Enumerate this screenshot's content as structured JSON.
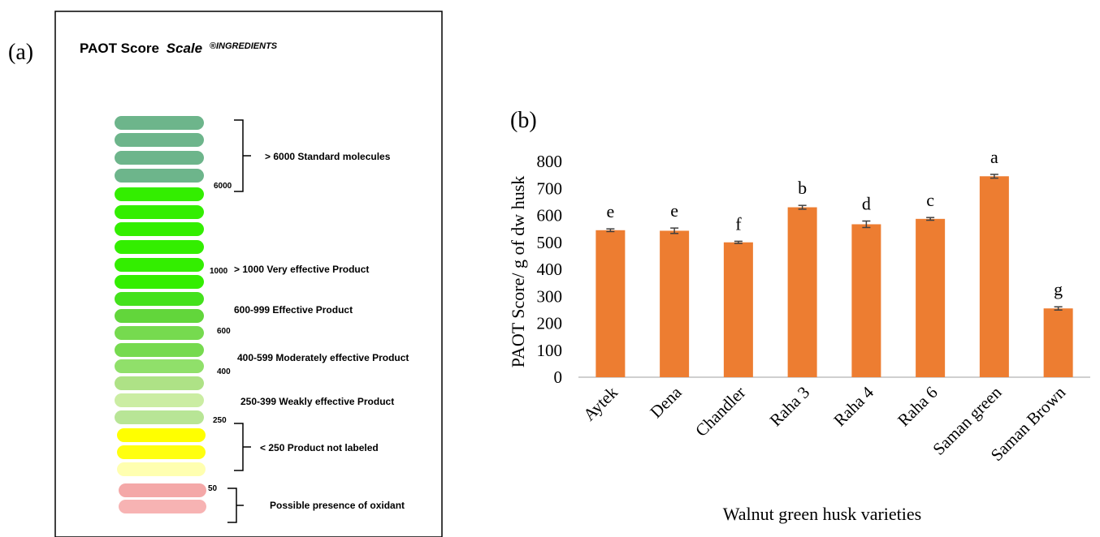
{
  "panel_a": {
    "panel_label": "(a)",
    "title_main": "PAOT Score",
    "title_scale": "Scale",
    "title_brand": "®INGREDIENTS",
    "pills": [
      {
        "color": "#6db58b"
      },
      {
        "color": "#6db58b"
      },
      {
        "color": "#6db58b"
      },
      {
        "color": "#6db58b"
      },
      {
        "color": "#33ee00"
      },
      {
        "color": "#33ee00"
      },
      {
        "color": "#33ee00"
      },
      {
        "color": "#33ee00"
      },
      {
        "color": "#33ee00"
      },
      {
        "color": "#33ee00"
      },
      {
        "color": "#44e11c"
      },
      {
        "color": "#62d63b"
      },
      {
        "color": "#76da4f"
      },
      {
        "color": "#76da4f"
      },
      {
        "color": "#90e06a"
      },
      {
        "color": "#aee286"
      },
      {
        "color": "#cbeda3"
      },
      {
        "color": "#b8e596"
      },
      {
        "color": "#ffff00"
      },
      {
        "color": "#ffff10"
      },
      {
        "color": "#ffffb0"
      },
      {
        "color": "#f4a8a8"
      },
      {
        "color": "#f7b3b3"
      }
    ],
    "thresholds": [
      "6000",
      "1000",
      "600",
      "400",
      "250",
      "50"
    ],
    "categories": [
      "> 6000  Standard molecules",
      "> 1000  Very effective Product",
      "600-999 Effective Product",
      "400-599 Moderately effective Product",
      "250-399 Weakly effective Product",
      "< 250 Product not labeled",
      "Possible presence of oxidant"
    ]
  },
  "chart_data": {
    "type": "bar",
    "panel_label": "(b)",
    "categories": [
      "Aytek",
      "Dena",
      "Chandler",
      "Raha 3",
      "Raha 4",
      "Raha 6",
      "Saman green",
      "Saman Brown"
    ],
    "series": [
      {
        "values": [
          545,
          543,
          500,
          630,
          567,
          587,
          745,
          255
        ],
        "errors": [
          5,
          10,
          4,
          7,
          12,
          5,
          7,
          6
        ],
        "letters": [
          "e",
          "e",
          "f",
          "b",
          "d",
          "c",
          "a",
          "g"
        ],
        "color": "#ed7d31"
      }
    ],
    "ylabel": "PAOT Score/ g of dw husk",
    "xlabel": "Walnut green husk varieties",
    "ylim": [
      0,
      800
    ],
    "yticks": [
      "0",
      "100",
      "200",
      "300",
      "400",
      "500",
      "600",
      "700",
      "800"
    ],
    "grid": false
  }
}
